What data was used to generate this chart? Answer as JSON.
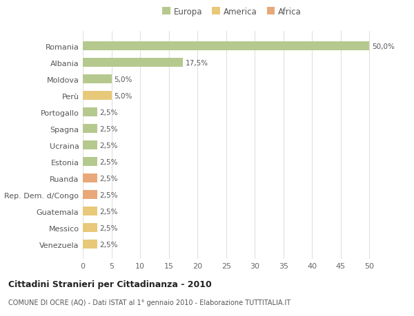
{
  "categories": [
    "Romania",
    "Albania",
    "Moldova",
    "Perù",
    "Portogallo",
    "Spagna",
    "Ucraina",
    "Estonia",
    "Ruanda",
    "Rep. Dem. d/Congo",
    "Guatemala",
    "Messico",
    "Venezuela"
  ],
  "values": [
    50.0,
    17.5,
    5.0,
    5.0,
    2.5,
    2.5,
    2.5,
    2.5,
    2.5,
    2.5,
    2.5,
    2.5,
    2.5
  ],
  "colors": [
    "#b5c98e",
    "#b5c98e",
    "#b5c98e",
    "#e8c97a",
    "#b5c98e",
    "#b5c98e",
    "#b5c98e",
    "#b5c98e",
    "#e8a87a",
    "#e8a87a",
    "#e8c97a",
    "#e8c97a",
    "#e8c97a"
  ],
  "labels": [
    "50,0%",
    "17,5%",
    "5,0%",
    "5,0%",
    "2,5%",
    "2,5%",
    "2,5%",
    "2,5%",
    "2,5%",
    "2,5%",
    "2,5%",
    "2,5%",
    "2,5%"
  ],
  "legend": [
    {
      "label": "Europa",
      "color": "#b5c98e"
    },
    {
      "label": "America",
      "color": "#e8c97a"
    },
    {
      "label": "Africa",
      "color": "#e8a87a"
    }
  ],
  "title": "Cittadini Stranieri per Cittadinanza - 2010",
  "subtitle": "COMUNE DI OCRE (AQ) - Dati ISTAT al 1° gennaio 2010 - Elaborazione TUTTITALIA.IT",
  "xlim": [
    0,
    52
  ],
  "xticks": [
    0,
    5,
    10,
    15,
    20,
    25,
    30,
    35,
    40,
    45,
    50
  ],
  "background_color": "#ffffff",
  "grid_color": "#e0e0e0"
}
